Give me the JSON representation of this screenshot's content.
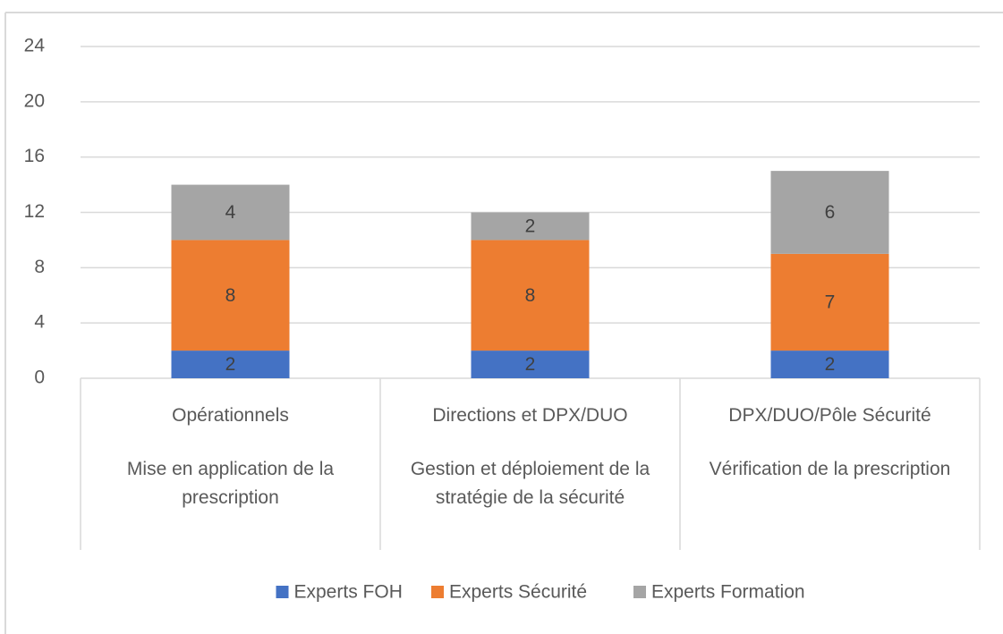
{
  "chart_data": {
    "type": "stacked_bar",
    "categories": [
      "Opérationnels",
      "Directions et DPX/DUO",
      "DPX/DUO/Pôle Sécurité"
    ],
    "category_descriptions": [
      "Mise en application de la prescription",
      "Gestion et déploiement de la stratégie de la sécurité",
      "Vérification de la prescription"
    ],
    "series": [
      {
        "name": "Experts FOH",
        "color": "#4472c4",
        "values": [
          2,
          2,
          2
        ]
      },
      {
        "name": "Experts Sécurité",
        "color": "#ed7d31",
        "values": [
          8,
          8,
          7
        ]
      },
      {
        "name": "Experts Formation",
        "color": "#a5a5a5",
        "values": [
          4,
          2,
          6
        ]
      }
    ],
    "ylim": [
      0,
      24
    ],
    "yticks": [
      0,
      4,
      8,
      12,
      16,
      20,
      24
    ],
    "grid": true,
    "legend": "bottom",
    "data_labels": true
  }
}
